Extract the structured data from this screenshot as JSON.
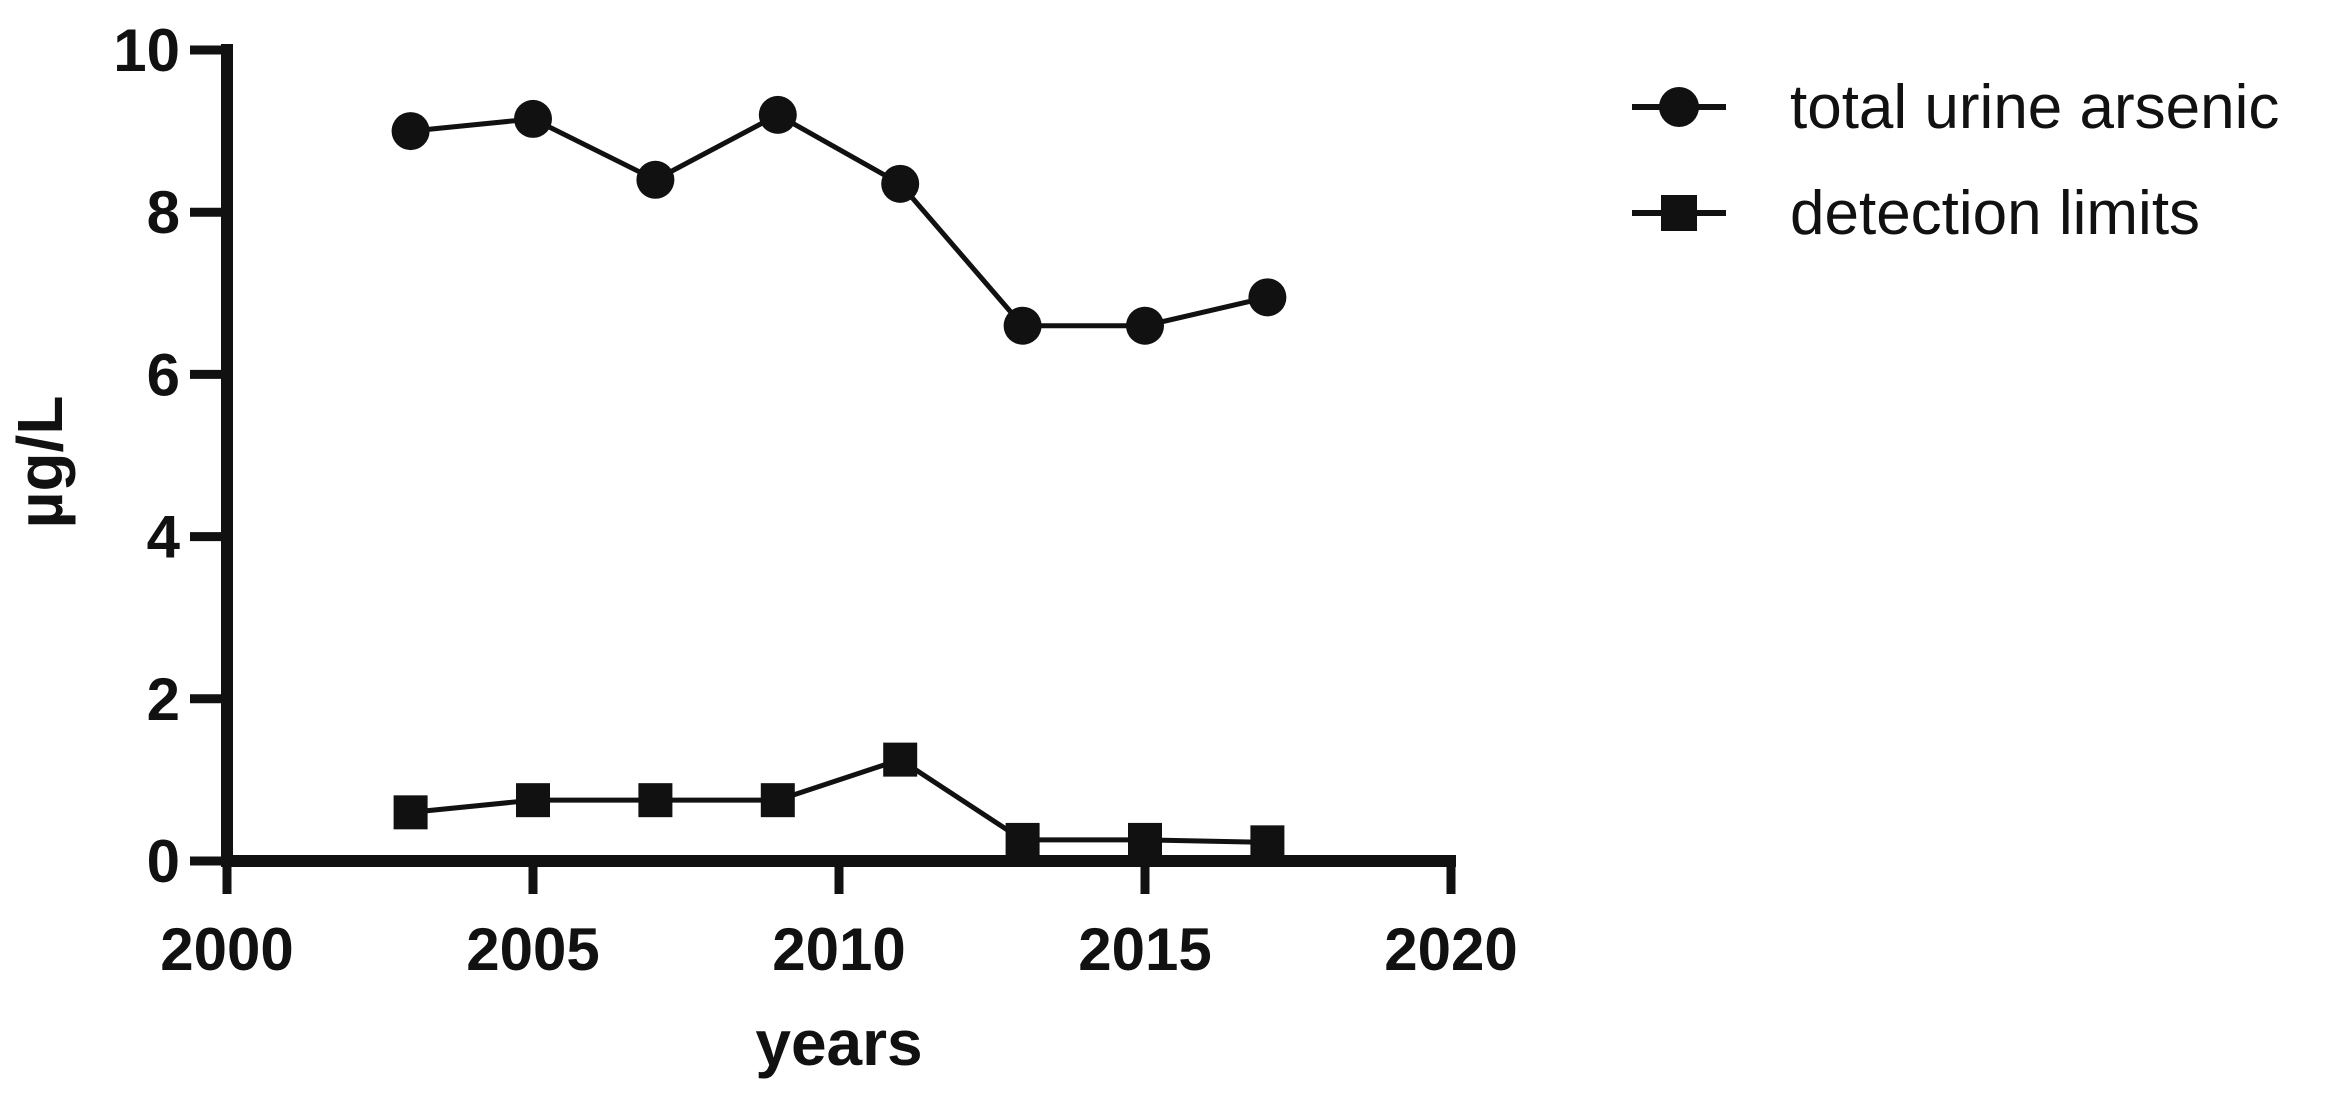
{
  "chart_data": {
    "type": "line",
    "title": "",
    "xlabel": "years",
    "ylabel": "µg/L",
    "xlim": [
      2000,
      2020
    ],
    "ylim": [
      0,
      10
    ],
    "xticks": [
      2000,
      2005,
      2010,
      2015,
      2020
    ],
    "yticks": [
      0,
      2,
      4,
      6,
      8,
      10
    ],
    "grid": false,
    "legend_position": "outside-top-right",
    "x": [
      2003,
      2005,
      2007,
      2009,
      2011,
      2013,
      2015,
      2017
    ],
    "series": [
      {
        "name": "total urine arsenic",
        "marker": "circle",
        "values": [
          9.0,
          9.15,
          8.4,
          9.2,
          8.35,
          6.6,
          6.6,
          6.95
        ]
      },
      {
        "name": "detection limits",
        "marker": "square",
        "values": [
          0.6,
          0.75,
          0.75,
          0.75,
          1.25,
          0.26,
          0.26,
          0.23
        ]
      }
    ],
    "colors": {
      "ink": "#111111",
      "background": "#ffffff"
    }
  }
}
